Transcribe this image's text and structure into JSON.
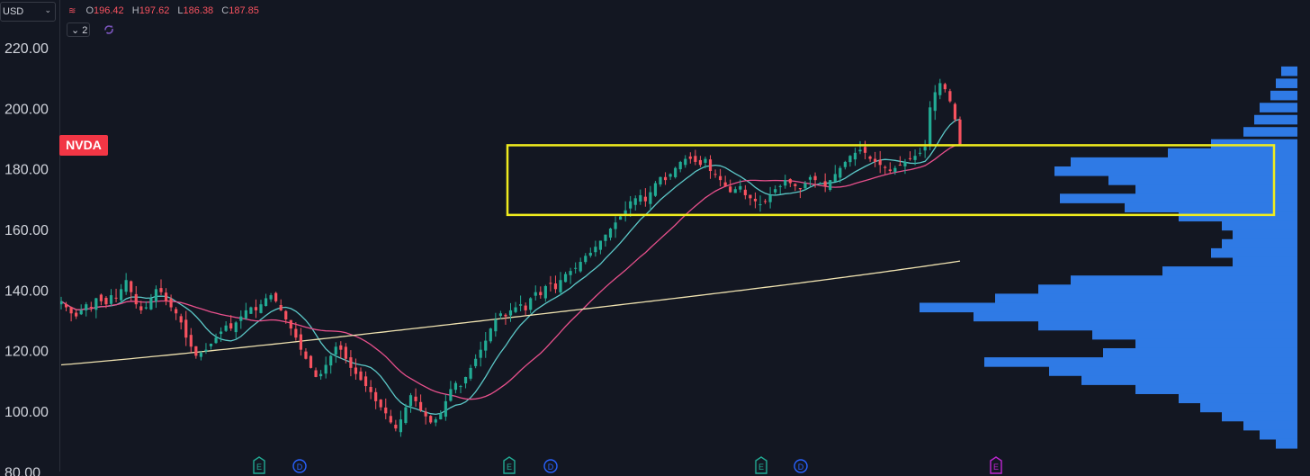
{
  "toolbar": {
    "currency": "USD",
    "legend": {
      "open_label": "O",
      "open": "196.42",
      "high_label": "H",
      "high": "197.62",
      "low_label": "L",
      "low": "186.38",
      "close_label": "C",
      "close": "187.85"
    },
    "indicator_count": "2",
    "colors": {
      "down": "#f7525f",
      "up": "#22ab94",
      "bg": "#131722",
      "axis_text": "#d1d4dc"
    }
  },
  "chart_data": {
    "type": "candlestick",
    "ticker": "NVDA",
    "ticker_color": "#f23645",
    "ylim": [
      80,
      226
    ],
    "yticks": [
      "220.00",
      "200.00",
      "180.00",
      "160.00",
      "140.00",
      "120.00",
      "100.00",
      "80.00"
    ],
    "grid": false,
    "close_series": [
      136,
      134,
      132,
      131,
      133,
      135,
      134,
      137,
      136,
      135,
      138,
      137,
      140,
      143,
      139,
      135,
      133,
      134,
      137,
      140,
      139,
      136,
      134,
      132,
      129,
      124,
      121,
      118,
      119,
      120,
      122,
      124,
      126,
      128,
      127,
      129,
      131,
      133,
      134,
      133,
      135,
      137,
      138,
      136,
      133,
      130,
      127,
      124,
      120,
      117,
      114,
      111,
      112,
      115,
      118,
      121,
      120,
      117,
      114,
      112,
      110,
      108,
      106,
      103,
      101,
      99,
      96,
      94,
      97,
      101,
      105,
      103,
      100,
      98,
      96,
      97,
      99,
      103,
      107,
      109,
      108,
      111,
      114,
      117,
      120,
      123,
      127,
      130,
      132,
      131,
      133,
      134,
      135,
      133,
      137,
      139,
      138,
      141,
      142,
      140,
      143,
      145,
      146,
      147,
      149,
      151,
      152,
      154,
      156,
      158,
      160,
      162,
      164,
      166,
      169,
      170,
      171,
      169,
      172,
      175,
      177,
      176,
      178,
      180,
      182,
      183,
      183,
      182,
      181,
      183,
      179,
      178,
      176,
      174,
      172,
      173,
      174,
      171,
      170,
      169,
      168,
      169,
      171,
      173,
      174,
      176,
      175,
      174,
      173,
      175,
      177,
      176,
      175,
      174,
      176,
      178,
      180,
      182,
      184,
      185,
      186,
      185,
      183,
      182,
      181,
      180,
      179,
      180,
      181,
      182,
      183,
      184,
      185,
      187,
      200,
      205,
      208,
      206,
      202,
      196,
      187.85
    ],
    "moving_averages": [
      {
        "name": "",
        "color": "#5cc8c8",
        "period": 10
      },
      {
        "name": "",
        "color": "#e8508c",
        "period": 25
      },
      {
        "name": "",
        "color": "#efe2b0",
        "period": 120
      }
    ],
    "ma200_anchor": {
      "start_value": 115,
      "end_value": 149.5
    },
    "highlight_zone": {
      "y_low": 164.5,
      "y_high": 187.5,
      "color": "#f0ec1e"
    },
    "volume_profile": {
      "color": "#2f7ae5",
      "levels": [
        {
          "price": 212,
          "vol": 3
        },
        {
          "price": 208,
          "vol": 4
        },
        {
          "price": 204,
          "vol": 5
        },
        {
          "price": 200,
          "vol": 7
        },
        {
          "price": 196,
          "vol": 8
        },
        {
          "price": 192,
          "vol": 10
        },
        {
          "price": 188,
          "vol": 16
        },
        {
          "price": 185,
          "vol": 24
        },
        {
          "price": 182,
          "vol": 42
        },
        {
          "price": 179,
          "vol": 45
        },
        {
          "price": 176,
          "vol": 35
        },
        {
          "price": 173,
          "vol": 30
        },
        {
          "price": 170,
          "vol": 44
        },
        {
          "price": 167,
          "vol": 32
        },
        {
          "price": 164,
          "vol": 22
        },
        {
          "price": 161,
          "vol": 14
        },
        {
          "price": 158,
          "vol": 12
        },
        {
          "price": 155,
          "vol": 14
        },
        {
          "price": 152,
          "vol": 16
        },
        {
          "price": 149,
          "vol": 12
        },
        {
          "price": 146,
          "vol": 25
        },
        {
          "price": 143,
          "vol": 42
        },
        {
          "price": 140,
          "vol": 48
        },
        {
          "price": 137,
          "vol": 56
        },
        {
          "price": 134,
          "vol": 70
        },
        {
          "price": 131,
          "vol": 60
        },
        {
          "price": 128,
          "vol": 48
        },
        {
          "price": 125,
          "vol": 38
        },
        {
          "price": 122,
          "vol": 30
        },
        {
          "price": 119,
          "vol": 36
        },
        {
          "price": 116,
          "vol": 58
        },
        {
          "price": 113,
          "vol": 46
        },
        {
          "price": 110,
          "vol": 40
        },
        {
          "price": 107,
          "vol": 30
        },
        {
          "price": 104,
          "vol": 22
        },
        {
          "price": 101,
          "vol": 18
        },
        {
          "price": 98,
          "vol": 14
        },
        {
          "price": 95,
          "vol": 10
        },
        {
          "price": 92,
          "vol": 7
        },
        {
          "price": 89,
          "vol": 4
        }
      ]
    },
    "events": [
      {
        "label": "E",
        "index": 80,
        "color": "#22ab94"
      },
      {
        "label": "D",
        "index": 95,
        "color": "#2962ff"
      },
      {
        "label": "E",
        "index": 176,
        "color": "#22ab94"
      },
      {
        "label": "D",
        "index": 192,
        "color": "#2962ff"
      },
      {
        "label": "E",
        "index": 272,
        "color": "#22ab94"
      },
      {
        "label": "D",
        "index": 288,
        "color": "#2962ff"
      },
      {
        "label": "E",
        "index": 365,
        "color": "#c026d3"
      }
    ]
  }
}
